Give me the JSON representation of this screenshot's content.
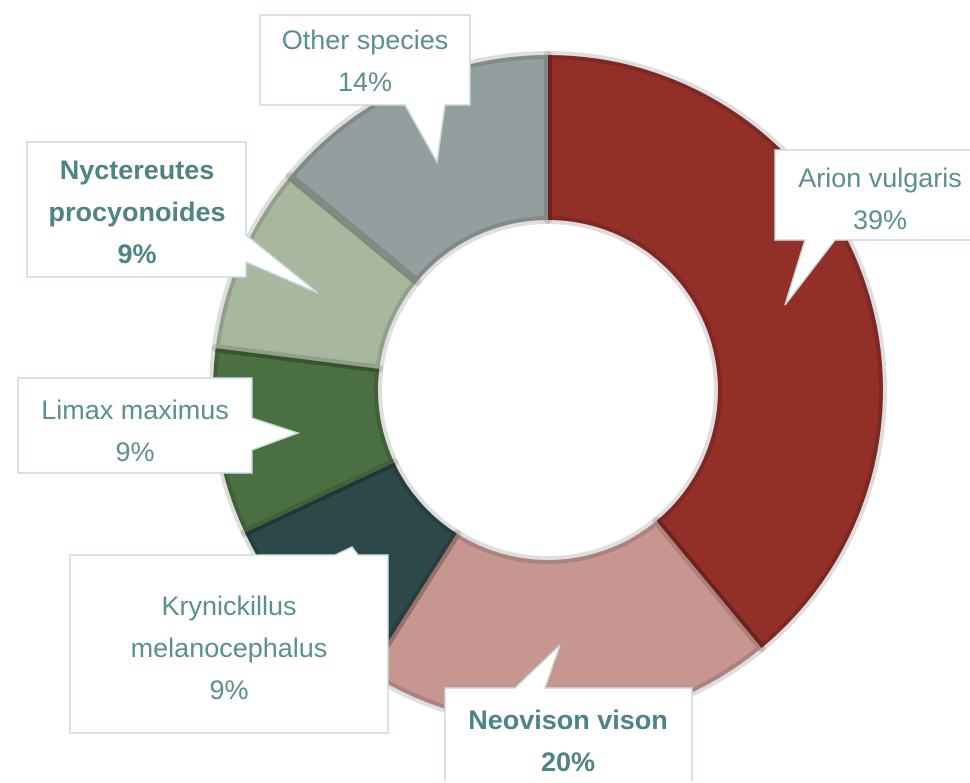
{
  "chart_data": {
    "type": "donut",
    "categories": [
      "Arion vulgaris",
      "Neovison vison",
      "Krynickillus melanocephalus",
      "Limax maximus",
      "Nyctereutes procyonoides",
      "Other species"
    ],
    "values": [
      39,
      20,
      9,
      9,
      9,
      14
    ],
    "value_labels": [
      "39%",
      "20%",
      "9%",
      "9%",
      "9%",
      "14%"
    ],
    "colors": [
      "#922f29",
      "#c79691",
      "#2c4848",
      "#4a6f40",
      "#a8b89f",
      "#929f9e"
    ],
    "bold_labels": [
      false,
      true,
      false,
      false,
      true,
      false
    ]
  }
}
